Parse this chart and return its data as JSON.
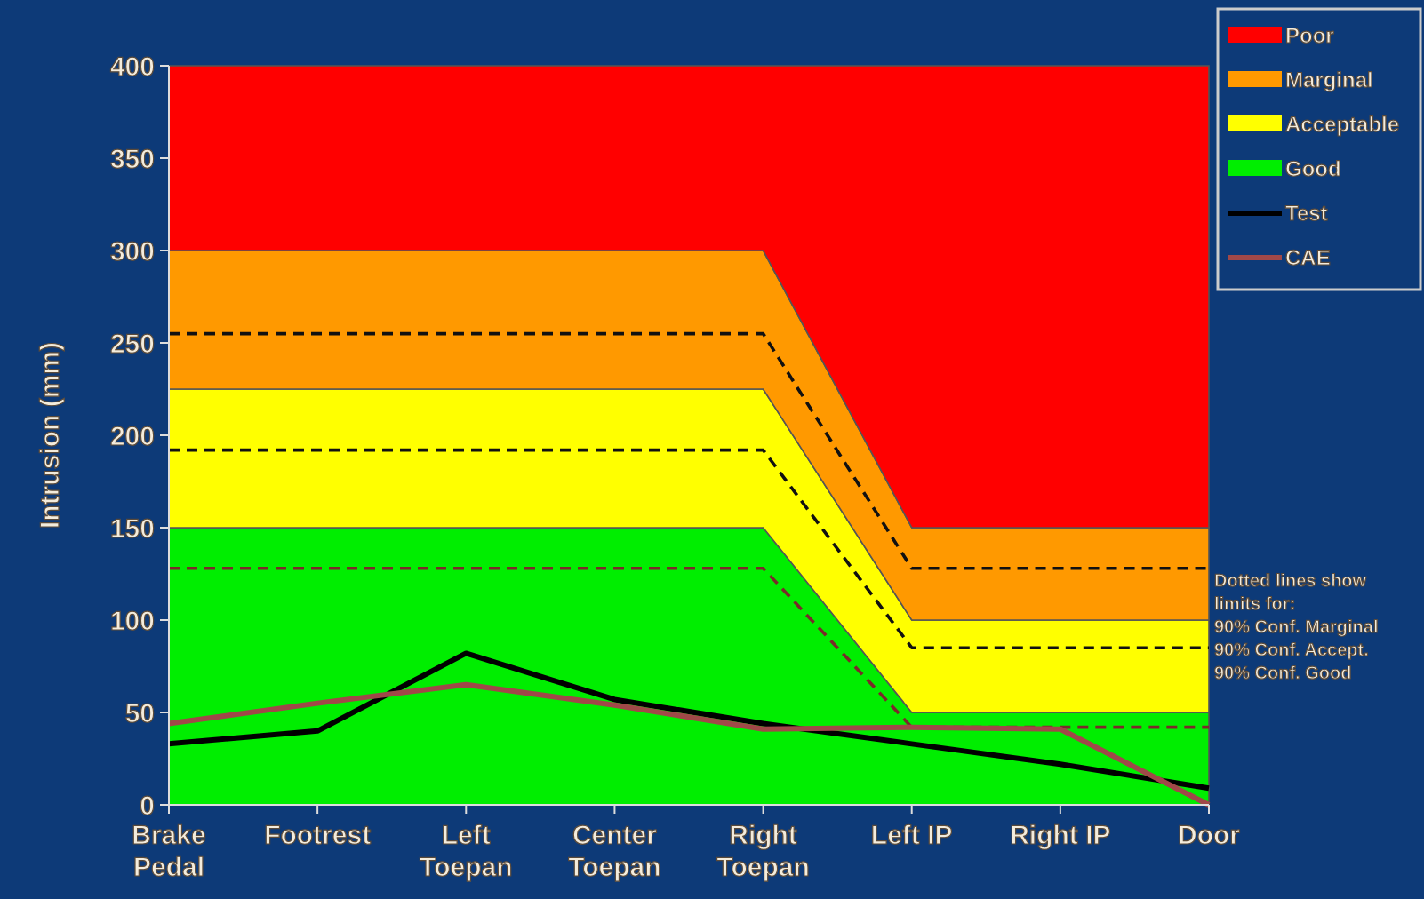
{
  "chart_data": {
    "type": "area",
    "stacked": true,
    "ylabel": "Intrusion (mm)",
    "categories": [
      "Brake Pedal",
      "Footrest",
      "Left Toepan",
      "Center Toepan",
      "Right Toepan",
      "Left IP",
      "Right IP",
      "Door"
    ],
    "ylim": [
      0,
      400
    ],
    "yticks": [
      0,
      50,
      100,
      150,
      200,
      250,
      300,
      350,
      400
    ],
    "legend": "top right",
    "grid": false,
    "series": [
      {
        "name": "Good",
        "color": "#00ee00",
        "values": [
          150,
          150,
          150,
          150,
          150,
          50,
          50,
          50
        ]
      },
      {
        "name": "Acceptable",
        "color": "#ffff00",
        "values": [
          75,
          75,
          75,
          75,
          75,
          50,
          50,
          50
        ]
      },
      {
        "name": "Marginal",
        "color": "#ff9900",
        "values": [
          75,
          75,
          75,
          75,
          75,
          50,
          50,
          50
        ]
      },
      {
        "name": "Poor",
        "color": "#ff0000",
        "values": [
          100,
          100,
          100,
          100,
          100,
          250,
          250,
          250
        ]
      },
      {
        "type": "line",
        "line_style": "dashed",
        "color": "#111111",
        "values": [
          255,
          255,
          255,
          255,
          255,
          128,
          128,
          128
        ]
      },
      {
        "type": "line",
        "line_style": "dashed",
        "color": "#111111",
        "values": [
          192,
          192,
          192,
          192,
          192,
          85,
          85,
          85
        ]
      },
      {
        "type": "line",
        "line_style": "dashed",
        "color": "#7a2a2a",
        "values": [
          128,
          128,
          128,
          128,
          128,
          42,
          42,
          42
        ]
      },
      {
        "name": "Test",
        "type": "line",
        "line_style": "solid",
        "color": "#000000",
        "values": [
          33,
          40,
          82,
          57,
          44,
          33,
          22,
          9
        ]
      },
      {
        "name": "CAE",
        "type": "line",
        "line_style": "solid",
        "color": "#a04848",
        "values": [
          44,
          55,
          65,
          54,
          41,
          42,
          41,
          0
        ]
      }
    ],
    "annotations": [
      "Dotted lines show limits for:",
      "90% Conf. Marginal",
      "90% Conf. Accept.",
      "90% Conf. Good"
    ]
  }
}
